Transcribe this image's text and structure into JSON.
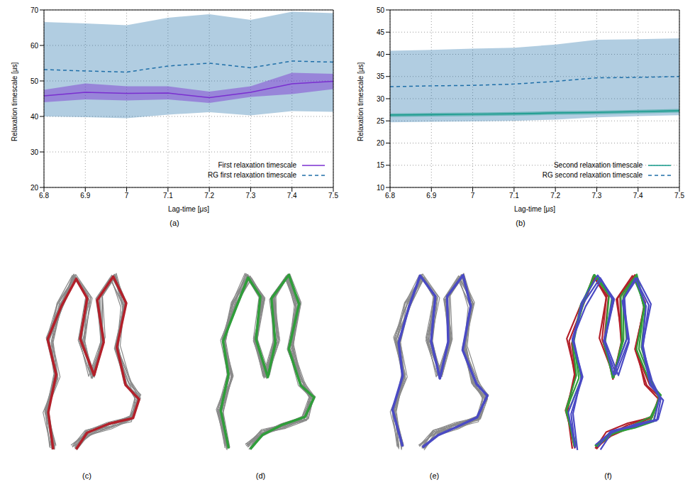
{
  "chart_data": [
    {
      "type": "line",
      "caption": "(a)",
      "x_label": "Lag-time [μs]",
      "y_label": "Relaxation timescale [μs]",
      "x": [
        6.8,
        6.9,
        7.0,
        7.1,
        7.2,
        7.3,
        7.4,
        7.5
      ],
      "xlim": [
        6.8,
        7.5
      ],
      "xticks": [
        6.8,
        6.9,
        7,
        7.1,
        7.2,
        7.3,
        7.4,
        7.5
      ],
      "ylim": [
        20,
        70
      ],
      "yticks": [
        20,
        30,
        40,
        50,
        60,
        70
      ],
      "grid": true,
      "legend": "lower right",
      "series": [
        {
          "name": "First relaxation timescale",
          "color": "#7a2fd0",
          "line_style": "solid",
          "values": [
            45.8,
            46.8,
            46.5,
            46.6,
            45.3,
            46.8,
            49.2,
            49.9
          ],
          "lower": [
            44.0,
            44.8,
            44.5,
            44.8,
            43.8,
            45.5,
            46.3,
            47.7
          ],
          "upper": [
            47.5,
            49.3,
            48.5,
            48.5,
            47.0,
            48.5,
            52.3,
            52.0
          ]
        },
        {
          "name": "RG first relaxation timescale",
          "color": "#1f6fa8",
          "line_style": "dashed",
          "values": [
            53.2,
            52.8,
            52.5,
            54.2,
            55.0,
            53.7,
            55.6,
            55.3
          ],
          "lower": [
            40.0,
            39.8,
            39.5,
            40.5,
            41.2,
            40.3,
            41.5,
            41.3
          ],
          "upper": [
            66.6,
            66.2,
            65.7,
            67.8,
            68.8,
            67.2,
            69.5,
            69.1
          ]
        }
      ]
    },
    {
      "type": "line",
      "caption": "(b)",
      "x_label": "Lag-time [μs]",
      "y_label": "Relaxation timescale [μs]",
      "x": [
        6.8,
        6.9,
        7.0,
        7.1,
        7.2,
        7.3,
        7.4,
        7.5
      ],
      "xlim": [
        6.8,
        7.5
      ],
      "xticks": [
        6.8,
        6.9,
        7,
        7.1,
        7.2,
        7.3,
        7.4,
        7.5
      ],
      "ylim": [
        10,
        50
      ],
      "yticks": [
        10,
        15,
        20,
        25,
        30,
        35,
        40,
        45,
        50
      ],
      "grid": true,
      "legend": "lower right",
      "series": [
        {
          "name": "Second relaxation timescale",
          "color": "#139a8a",
          "line_style": "solid",
          "values": [
            26.3,
            26.4,
            26.5,
            26.6,
            26.8,
            26.9,
            27.1,
            27.3
          ],
          "lower": [
            25.9,
            26.0,
            26.1,
            26.2,
            26.4,
            26.5,
            26.7,
            26.9
          ],
          "upper": [
            26.7,
            26.8,
            26.9,
            27.0,
            27.2,
            27.3,
            27.5,
            27.7
          ]
        },
        {
          "name": "RG second relaxation timescale",
          "color": "#1f6fa8",
          "line_style": "dashed",
          "values": [
            32.7,
            32.9,
            33.0,
            33.3,
            33.9,
            34.7,
            34.8,
            35.0
          ],
          "lower": [
            24.7,
            24.8,
            24.9,
            25.0,
            25.3,
            25.8,
            26.1,
            26.3
          ],
          "upper": [
            40.8,
            41.0,
            41.3,
            41.5,
            42.2,
            43.3,
            43.4,
            43.6
          ]
        }
      ]
    }
  ],
  "images": [
    {
      "caption": "(c)"
    },
    {
      "caption": "(d)"
    },
    {
      "caption": "(e)"
    },
    {
      "caption": "(f)"
    }
  ]
}
